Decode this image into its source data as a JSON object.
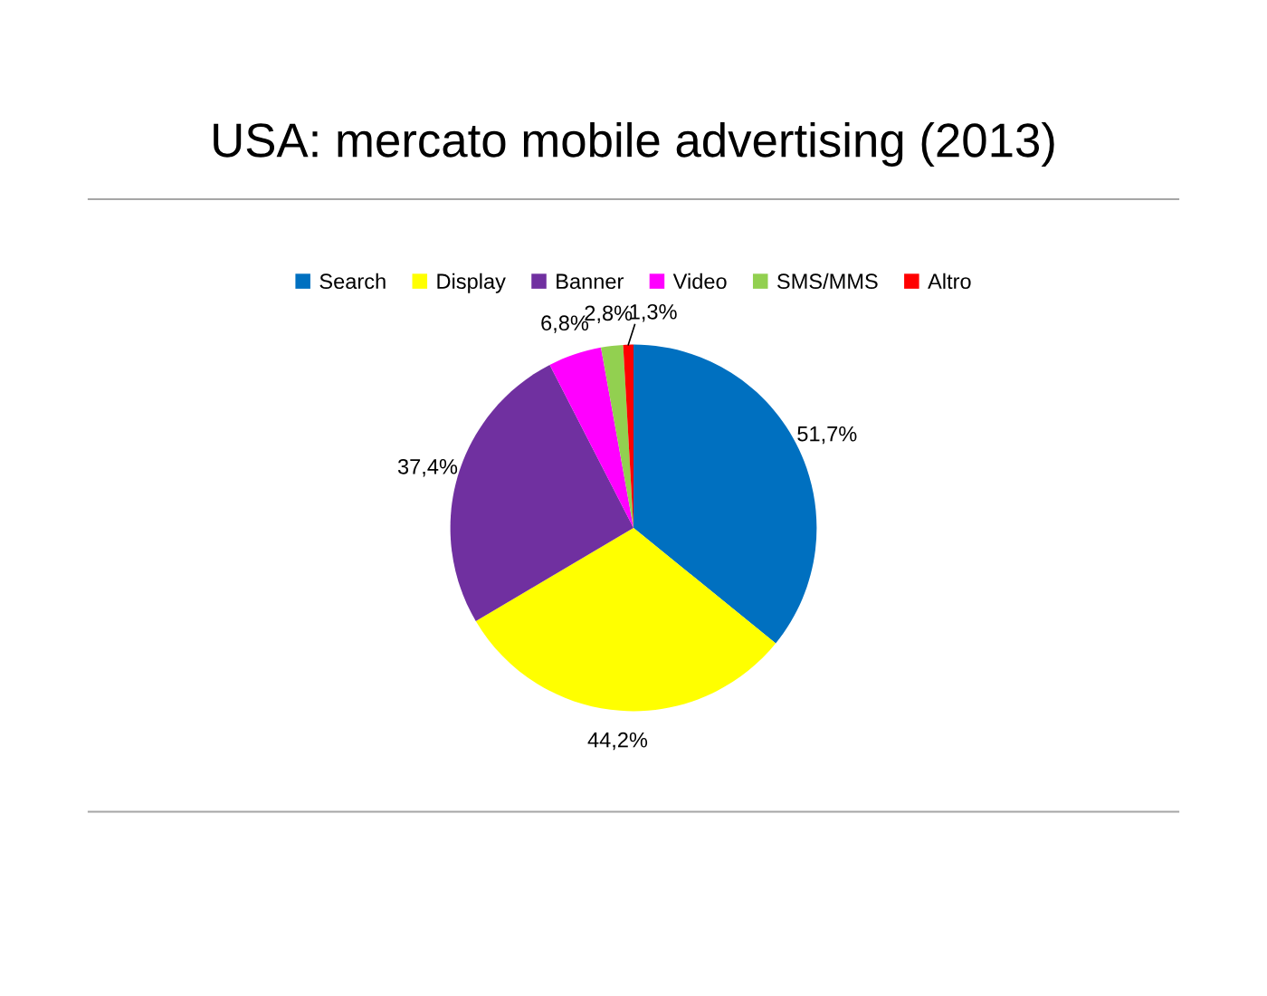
{
  "chart_data": {
    "type": "pie",
    "title": "USA: mercato mobile advertising (2013)",
    "categories": [
      "Search",
      "Display",
      "Banner",
      "Video",
      "SMS/MMS",
      "Altro"
    ],
    "values": [
      51.7,
      44.2,
      37.4,
      6.8,
      2.8,
      1.3
    ],
    "value_labels": [
      "51,7%",
      "44,2%",
      "37,4%",
      "6,8%",
      "2,8%",
      "1,3%"
    ],
    "colors": [
      "#0070c0",
      "#ffff00",
      "#7030a0",
      "#ff00ff",
      "#92d050",
      "#ff0000"
    ],
    "legend": "top"
  }
}
